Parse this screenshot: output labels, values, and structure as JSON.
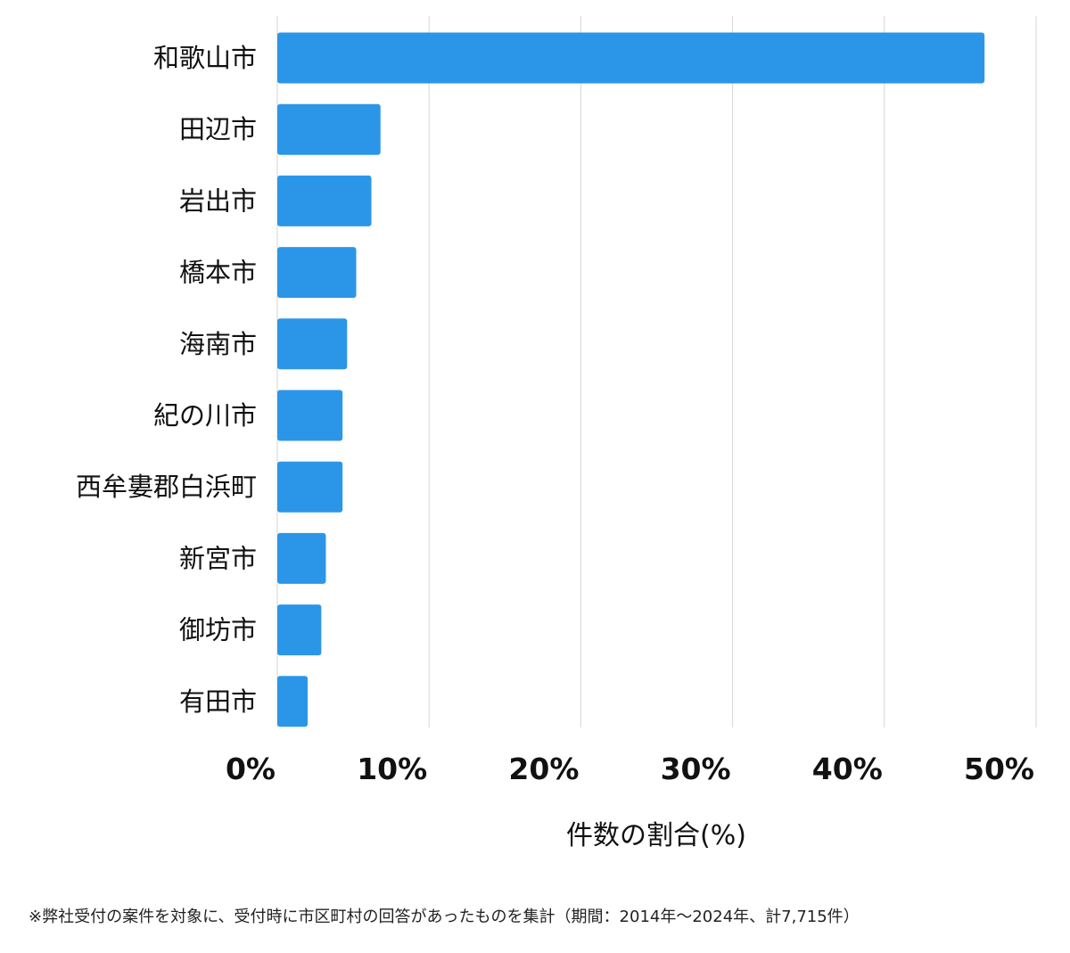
{
  "chart_data": {
    "type": "bar",
    "orientation": "horizontal",
    "categories": [
      "和歌山市",
      "田辺市",
      "岩出市",
      "橋本市",
      "海南市",
      "紀の川市",
      "西牟婁郡白浜町",
      "新宮市",
      "御坊市",
      "有田市"
    ],
    "values": [
      46.6,
      6.8,
      6.2,
      5.2,
      4.6,
      4.3,
      4.3,
      3.2,
      2.9,
      2.0
    ],
    "xticks": [
      "0%",
      "10%",
      "20%",
      "30%",
      "40%",
      "50%"
    ],
    "xlim": [
      0,
      50
    ],
    "xlabel": "件数の割合(%)",
    "grid": true,
    "bar_color": "#2b96e8",
    "grid_color": "#d6d6d6"
  },
  "footnote": "※弊社受付の案件を対象に、受付時に市区町村の回答があったものを集計（期間：2014年〜2024年、計7,715件）"
}
